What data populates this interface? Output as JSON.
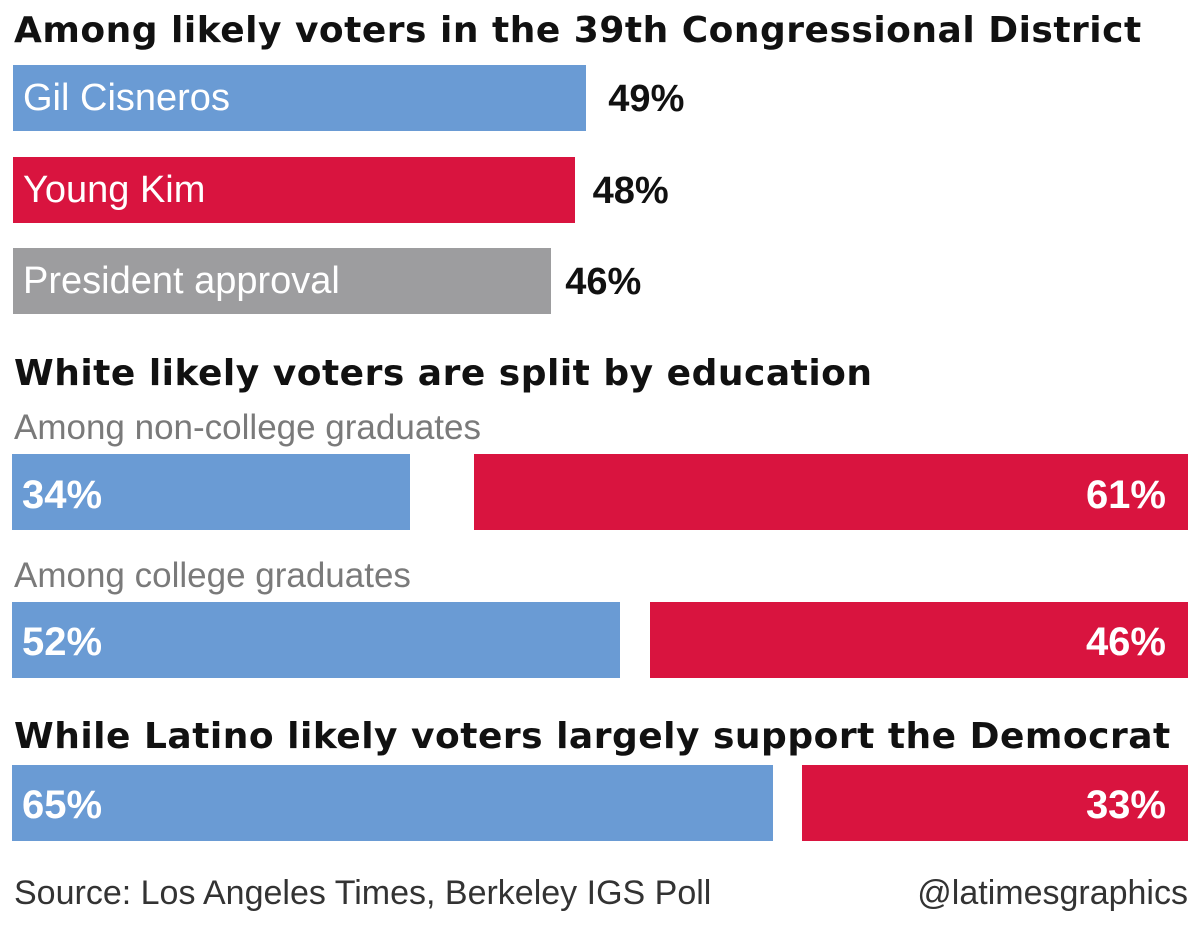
{
  "colors": {
    "democrat": "#6a9bd4",
    "republican": "#d9143f",
    "approval": "#9d9d9f"
  },
  "chart_data": [
    {
      "type": "bar",
      "title": "Among likely voters in the 39th Congressional District",
      "series": [
        {
          "name": "Gil Cisneros",
          "value": 49,
          "label": "49%",
          "color": "democrat"
        },
        {
          "name": "Young Kim",
          "value": 48,
          "label": "48%",
          "color": "republican"
        },
        {
          "name": "President approval",
          "value": 46,
          "label": "46%",
          "color": "approval"
        }
      ]
    },
    {
      "type": "bar",
      "title": "White likely voters are split by education",
      "groups": [
        {
          "subtitle": "Among non-college graduates",
          "democrat": 34,
          "democrat_label": "34%",
          "republican": 61,
          "republican_label": "61%"
        },
        {
          "subtitle": "Among college graduates",
          "democrat": 52,
          "democrat_label": "52%",
          "republican": 46,
          "republican_label": "46%"
        }
      ]
    },
    {
      "type": "bar",
      "title": "While Latino likely voters largely support the Democrat",
      "groups": [
        {
          "democrat": 65,
          "democrat_label": "65%",
          "republican": 33,
          "republican_label": "33%"
        }
      ]
    }
  ],
  "footer": {
    "source": "Source: Los Angeles Times, Berkeley IGS Poll",
    "credit": "@latimesgraphics"
  }
}
